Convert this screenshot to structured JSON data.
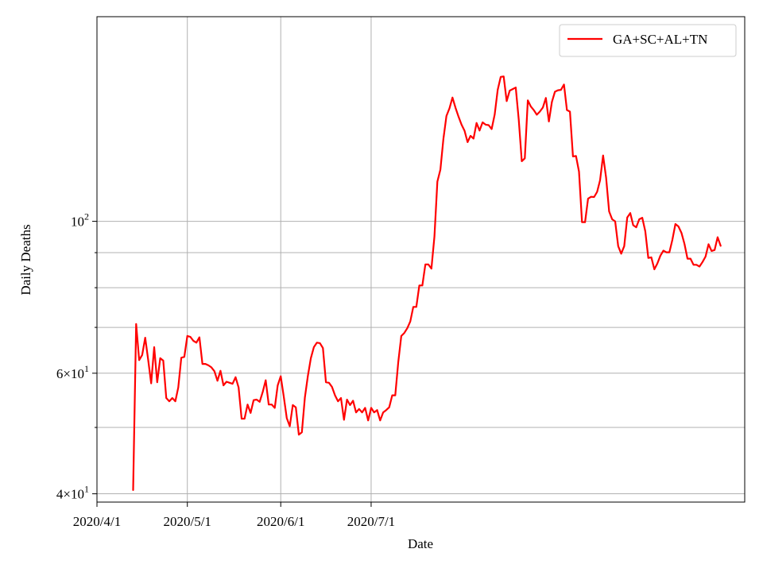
{
  "chart_data": {
    "type": "line",
    "scale": {
      "x": "date",
      "y": "log"
    },
    "xlabel": "Date",
    "ylabel": "Daily Deaths",
    "x_start": "2020-04-01",
    "x_range_days": [
      0,
      215
    ],
    "ylim": [
      38.9,
      199.0
    ],
    "grid": true,
    "legend_position": "top-right",
    "x_ticks": [
      {
        "day": 0,
        "label": "2020/4/1"
      },
      {
        "day": 30,
        "label": "2020/5/1"
      },
      {
        "day": 61,
        "label": "2020/6/1"
      },
      {
        "day": 91,
        "label": "2020/7/1"
      }
    ],
    "y_major_ticks": [
      {
        "value": 40,
        "base": "4",
        "exp": "1"
      },
      {
        "value": 60,
        "base": "6",
        "exp": "1"
      },
      {
        "value": 100,
        "base": "",
        "exp": "2"
      }
    ],
    "y_minor_ticks": [
      50,
      70,
      80,
      90
    ],
    "series": [
      {
        "name": "GA+SC+AL+TN",
        "color": "#ff0000",
        "points": [
          [
            12,
            40.5
          ],
          [
            13,
            70.8
          ],
          [
            14,
            62.7
          ],
          [
            15,
            63.8
          ],
          [
            16,
            67.6
          ],
          [
            17,
            62.8
          ],
          [
            18,
            58.0
          ],
          [
            19,
            65.5
          ],
          [
            20,
            58.2
          ],
          [
            21,
            63.1
          ],
          [
            22,
            62.6
          ],
          [
            23,
            55.2
          ],
          [
            24,
            54.6
          ],
          [
            25,
            55.2
          ],
          [
            26,
            54.6
          ],
          [
            27,
            57.2
          ],
          [
            28,
            63.2
          ],
          [
            29,
            63.4
          ],
          [
            30,
            68.0
          ],
          [
            31,
            67.8
          ],
          [
            32,
            66.9
          ],
          [
            33,
            66.5
          ],
          [
            34,
            67.7
          ],
          [
            35,
            61.9
          ],
          [
            36,
            61.9
          ],
          [
            37,
            61.6
          ],
          [
            38,
            61.2
          ],
          [
            39,
            60.4
          ],
          [
            40,
            58.5
          ],
          [
            41,
            60.5
          ],
          [
            42,
            57.6
          ],
          [
            43,
            58.3
          ],
          [
            44,
            58.1
          ],
          [
            45,
            57.9
          ],
          [
            46,
            59.2
          ],
          [
            47,
            57.2
          ],
          [
            48,
            51.5
          ],
          [
            49,
            51.5
          ],
          [
            50,
            54.0
          ],
          [
            51,
            52.5
          ],
          [
            52,
            54.8
          ],
          [
            53,
            54.9
          ],
          [
            54,
            54.5
          ],
          [
            55,
            56.3
          ],
          [
            56,
            58.6
          ],
          [
            57,
            54.0
          ],
          [
            58,
            54.0
          ],
          [
            59,
            53.4
          ],
          [
            60,
            57.6
          ],
          [
            61,
            59.4
          ],
          [
            62,
            55.5
          ],
          [
            63,
            51.6
          ],
          [
            64,
            50.2
          ],
          [
            65,
            53.9
          ],
          [
            66,
            53.5
          ],
          [
            67,
            48.8
          ],
          [
            68,
            49.2
          ],
          [
            69,
            55.3
          ],
          [
            70,
            59.4
          ],
          [
            71,
            63.1
          ],
          [
            72,
            65.5
          ],
          [
            73,
            66.5
          ],
          [
            74,
            66.4
          ],
          [
            75,
            65.3
          ],
          [
            76,
            58.2
          ],
          [
            77,
            58.1
          ],
          [
            78,
            57.3
          ],
          [
            79,
            55.7
          ],
          [
            80,
            54.6
          ],
          [
            81,
            55.2
          ],
          [
            82,
            51.3
          ],
          [
            83,
            54.9
          ],
          [
            84,
            53.9
          ],
          [
            85,
            54.7
          ],
          [
            86,
            52.6
          ],
          [
            87,
            53.2
          ],
          [
            88,
            52.6
          ],
          [
            89,
            53.4
          ],
          [
            90,
            51.2
          ],
          [
            91,
            53.4
          ],
          [
            92,
            52.6
          ],
          [
            93,
            53.0
          ],
          [
            94,
            51.2
          ],
          [
            95,
            52.6
          ],
          [
            96,
            53.0
          ],
          [
            97,
            53.5
          ],
          [
            98,
            55.7
          ],
          [
            99,
            55.7
          ],
          [
            100,
            62.3
          ],
          [
            101,
            68.0
          ],
          [
            102,
            68.7
          ],
          [
            103,
            69.8
          ],
          [
            104,
            71.4
          ],
          [
            105,
            75.0
          ],
          [
            106,
            75.0
          ],
          [
            107,
            80.6
          ],
          [
            108,
            80.6
          ],
          [
            109,
            86.5
          ],
          [
            110,
            86.5
          ],
          [
            111,
            85.3
          ],
          [
            112,
            95.0
          ],
          [
            113,
            114.3
          ],
          [
            114,
            119.0
          ],
          [
            115,
            132.0
          ],
          [
            116,
            142.5
          ],
          [
            117,
            146.2
          ],
          [
            118,
            151.6
          ],
          [
            119,
            146.5
          ],
          [
            120,
            142.2
          ],
          [
            121,
            138.4
          ],
          [
            122,
            135.6
          ],
          [
            123,
            130.5
          ],
          [
            124,
            133.3
          ],
          [
            125,
            132.1
          ],
          [
            126,
            139.2
          ],
          [
            127,
            135.7
          ],
          [
            128,
            139.5
          ],
          [
            129,
            138.4
          ],
          [
            130,
            138.2
          ],
          [
            131,
            136.4
          ],
          [
            132,
            143.2
          ],
          [
            133,
            155.6
          ],
          [
            134,
            162.5
          ],
          [
            135,
            162.8
          ],
          [
            136,
            149.8
          ],
          [
            137,
            155.2
          ],
          [
            138,
            156.0
          ],
          [
            139,
            156.8
          ],
          [
            140,
            140.7
          ],
          [
            141,
            122.4
          ],
          [
            142,
            123.6
          ],
          [
            143,
            150.2
          ],
          [
            144,
            147.1
          ],
          [
            145,
            145.3
          ],
          [
            146,
            143.1
          ],
          [
            147,
            144.6
          ],
          [
            148,
            146.6
          ],
          [
            149,
            151.4
          ],
          [
            150,
            139.9
          ],
          [
            151,
            149.4
          ],
          [
            152,
            154.6
          ],
          [
            153,
            155.4
          ],
          [
            154,
            155.6
          ],
          [
            155,
            158.4
          ],
          [
            156,
            145.4
          ],
          [
            157,
            144.6
          ],
          [
            158,
            124.4
          ],
          [
            159,
            124.6
          ],
          [
            160,
            118.2
          ],
          [
            161,
            99.7
          ],
          [
            162,
            99.7
          ],
          [
            163,
            107.9
          ],
          [
            164,
            108.6
          ],
          [
            165,
            108.5
          ],
          [
            166,
            110.4
          ],
          [
            167,
            114.8
          ],
          [
            168,
            124.8
          ],
          [
            169,
            115.8
          ],
          [
            170,
            103.4
          ],
          [
            171,
            100.7
          ],
          [
            172,
            100.0
          ],
          [
            173,
            92.0
          ],
          [
            174,
            89.7
          ],
          [
            175,
            92.0
          ],
          [
            176,
            101.3
          ],
          [
            177,
            102.8
          ],
          [
            178,
            98.7
          ],
          [
            179,
            98.0
          ],
          [
            180,
            100.7
          ],
          [
            181,
            101.2
          ],
          [
            182,
            96.7
          ],
          [
            183,
            88.4
          ],
          [
            184,
            88.6
          ],
          [
            185,
            85.1
          ],
          [
            186,
            86.8
          ],
          [
            187,
            89.1
          ],
          [
            188,
            90.6
          ],
          [
            189,
            90.1
          ],
          [
            190,
            90.1
          ],
          [
            191,
            94.0
          ],
          [
            192,
            99.1
          ],
          [
            193,
            98.3
          ],
          [
            194,
            96.2
          ],
          [
            195,
            92.7
          ],
          [
            196,
            88.2
          ],
          [
            197,
            88.2
          ],
          [
            198,
            86.4
          ],
          [
            199,
            86.4
          ],
          [
            200,
            85.9
          ],
          [
            201,
            87.2
          ],
          [
            202,
            88.8
          ],
          [
            203,
            92.6
          ],
          [
            204,
            90.5
          ],
          [
            205,
            90.8
          ],
          [
            206,
            94.8
          ],
          [
            207,
            92.1
          ]
        ]
      }
    ]
  }
}
